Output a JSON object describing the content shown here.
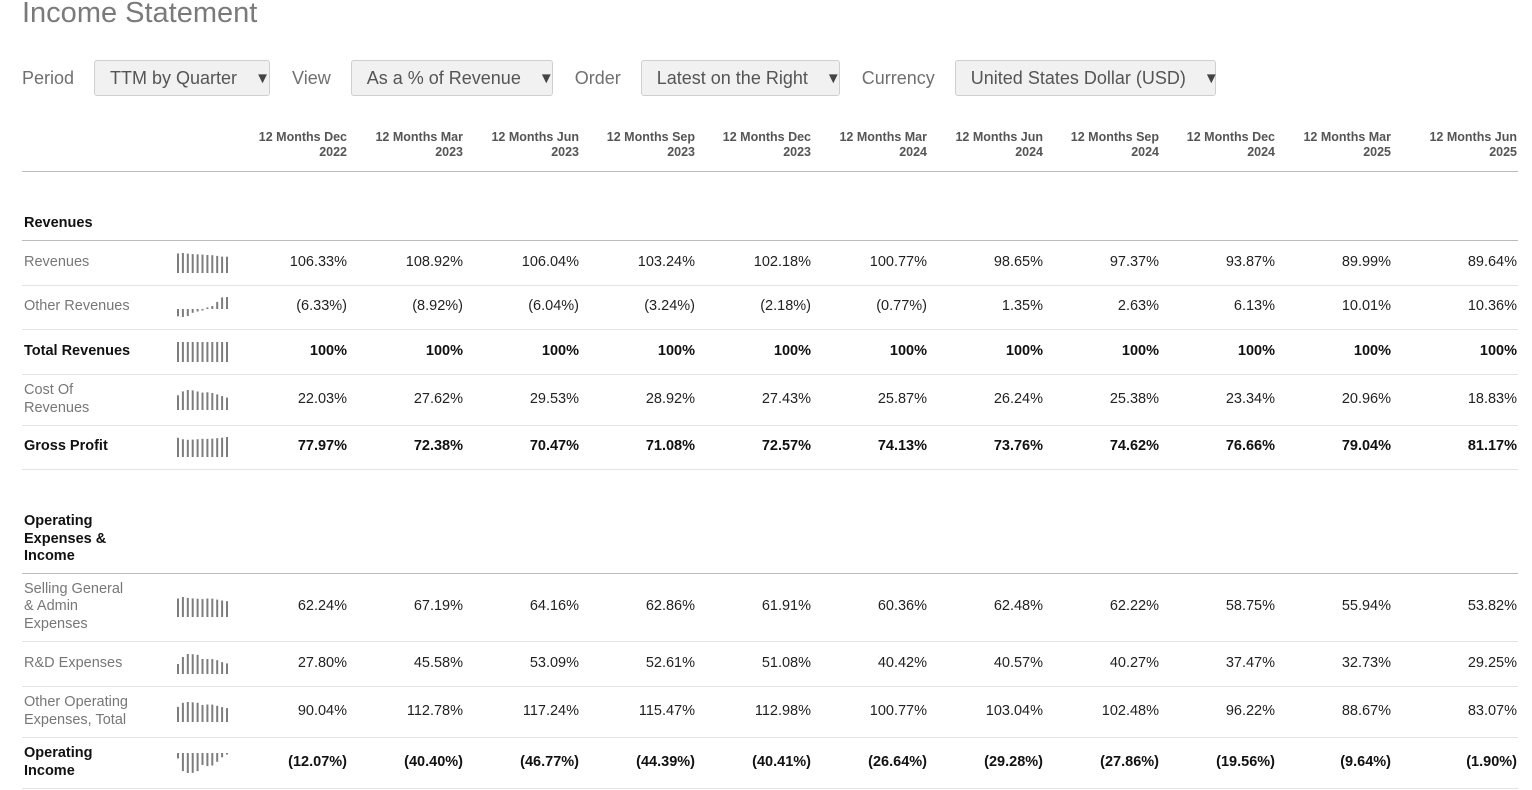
{
  "page_title": "Income Statement",
  "filters": [
    {
      "label": "Period",
      "value": "TTM by Quarter"
    },
    {
      "label": "View",
      "value": "As a % of Revenue"
    },
    {
      "label": "Order",
      "value": "Latest on the Right"
    },
    {
      "label": "Currency",
      "value": "United States Dollar (USD)"
    }
  ],
  "columns": [
    [
      "12 Months Dec",
      "2022"
    ],
    [
      "12 Months Mar",
      "2023"
    ],
    [
      "12 Months Jun",
      "2023"
    ],
    [
      "12 Months Sep",
      "2023"
    ],
    [
      "12 Months Dec",
      "2023"
    ],
    [
      "12 Months Mar",
      "2024"
    ],
    [
      "12 Months Jun",
      "2024"
    ],
    [
      "12 Months Sep",
      "2024"
    ],
    [
      "12 Months Dec",
      "2024"
    ],
    [
      "12 Months Mar",
      "2025"
    ],
    [
      "12 Months Jun",
      "2025"
    ]
  ],
  "sections": [
    {
      "title": "Revenues",
      "rows": [
        {
          "label": "Revenues",
          "bold": false,
          "values": [
            "106.33%",
            "108.92%",
            "106.04%",
            "103.24%",
            "102.18%",
            "100.77%",
            "98.65%",
            "97.37%",
            "93.87%",
            "89.99%",
            "89.64%"
          ],
          "spark": [
            106.33,
            108.92,
            106.04,
            103.24,
            102.18,
            100.77,
            98.65,
            97.37,
            93.87,
            89.99,
            89.64
          ]
        },
        {
          "label": "Other Revenues",
          "bold": false,
          "values": [
            "(6.33%)",
            "(8.92%)",
            "(6.04%)",
            "(3.24%)",
            "(2.18%)",
            "(0.77%)",
            "1.35%",
            "2.63%",
            "6.13%",
            "10.01%",
            "10.36%"
          ],
          "spark": [
            -6.33,
            -8.92,
            -6.04,
            -3.24,
            -2.18,
            -0.77,
            1.35,
            2.63,
            6.13,
            10.01,
            10.36
          ]
        },
        {
          "label": "Total Revenues",
          "bold": true,
          "values": [
            "100%",
            "100%",
            "100%",
            "100%",
            "100%",
            "100%",
            "100%",
            "100%",
            "100%",
            "100%",
            "100%"
          ],
          "spark": [
            100,
            100,
            100,
            100,
            100,
            100,
            100,
            100,
            100,
            100,
            100
          ]
        },
        {
          "label": "Cost Of Revenues",
          "bold": false,
          "values": [
            "22.03%",
            "27.62%",
            "29.53%",
            "28.92%",
            "27.43%",
            "25.87%",
            "26.24%",
            "25.38%",
            "23.34%",
            "20.96%",
            "18.83%"
          ],
          "spark": [
            22.03,
            27.62,
            29.53,
            28.92,
            27.43,
            25.87,
            26.24,
            25.38,
            23.34,
            20.96,
            18.83
          ]
        },
        {
          "label": "Gross Profit",
          "bold": true,
          "values": [
            "77.97%",
            "72.38%",
            "70.47%",
            "71.08%",
            "72.57%",
            "74.13%",
            "73.76%",
            "74.62%",
            "76.66%",
            "79.04%",
            "81.17%"
          ],
          "spark": [
            77.97,
            72.38,
            70.47,
            71.08,
            72.57,
            74.13,
            73.76,
            74.62,
            76.66,
            79.04,
            81.17
          ]
        }
      ]
    },
    {
      "title": "Operating Expenses & Income",
      "rows": [
        {
          "label": "Selling General & Admin Expenses",
          "bold": false,
          "values": [
            "62.24%",
            "67.19%",
            "64.16%",
            "62.86%",
            "61.91%",
            "60.36%",
            "62.48%",
            "62.22%",
            "58.75%",
            "55.94%",
            "53.82%"
          ],
          "spark": [
            62.24,
            67.19,
            64.16,
            62.86,
            61.91,
            60.36,
            62.48,
            62.22,
            58.75,
            55.94,
            53.82
          ]
        },
        {
          "label": "R&D Expenses",
          "bold": false,
          "values": [
            "27.80%",
            "45.58%",
            "53.09%",
            "52.61%",
            "51.08%",
            "40.42%",
            "40.57%",
            "40.27%",
            "37.47%",
            "32.73%",
            "29.25%"
          ],
          "spark": [
            27.8,
            45.58,
            53.09,
            52.61,
            51.08,
            40.42,
            40.57,
            40.27,
            37.47,
            32.73,
            29.25
          ]
        },
        {
          "label": "Other Operating Expenses, Total",
          "bold": false,
          "values": [
            "90.04%",
            "112.78%",
            "117.24%",
            "115.47%",
            "112.98%",
            "100.77%",
            "103.04%",
            "102.48%",
            "96.22%",
            "88.67%",
            "83.07%"
          ],
          "spark": [
            90.04,
            112.78,
            117.24,
            115.47,
            112.98,
            100.77,
            103.04,
            102.48,
            96.22,
            88.67,
            83.07
          ]
        },
        {
          "label": "Operating Income",
          "bold": true,
          "values": [
            "(12.07%)",
            "(40.40%)",
            "(46.77%)",
            "(44.39%)",
            "(40.41%)",
            "(26.64%)",
            "(29.28%)",
            "(27.86%)",
            "(19.56%)",
            "(9.64%)",
            "(1.90%)"
          ],
          "spark": [
            -12.07,
            -40.4,
            -46.77,
            -44.39,
            -40.41,
            -26.64,
            -29.28,
            -27.86,
            -19.56,
            -9.64,
            -1.9
          ]
        }
      ]
    }
  ]
}
